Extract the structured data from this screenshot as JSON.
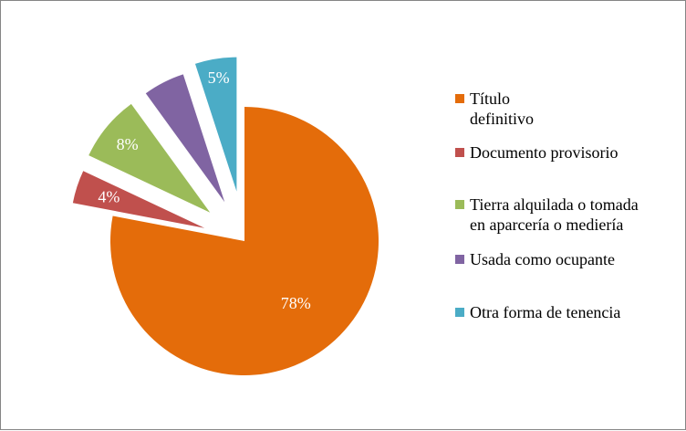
{
  "chart_data": {
    "type": "pie",
    "exploded": true,
    "start": "12 o'clock, clockwise",
    "categories": [
      "Título\ndefinitivo",
      "Documento provisorio",
      "Tierra alquilada o tomada\nen aparcería o mediería",
      "Usada como ocupante",
      "Otra forma de tenencia"
    ],
    "values": [
      78,
      4,
      8,
      5,
      5
    ],
    "labels": [
      "78%",
      "4%",
      "8%",
      "",
      "5%"
    ],
    "colors": [
      "#E46C0A",
      "#C0504D",
      "#9BBB59",
      "#8064A2",
      "#4BACC6"
    ],
    "legend_placement": "right",
    "title": ""
  }
}
